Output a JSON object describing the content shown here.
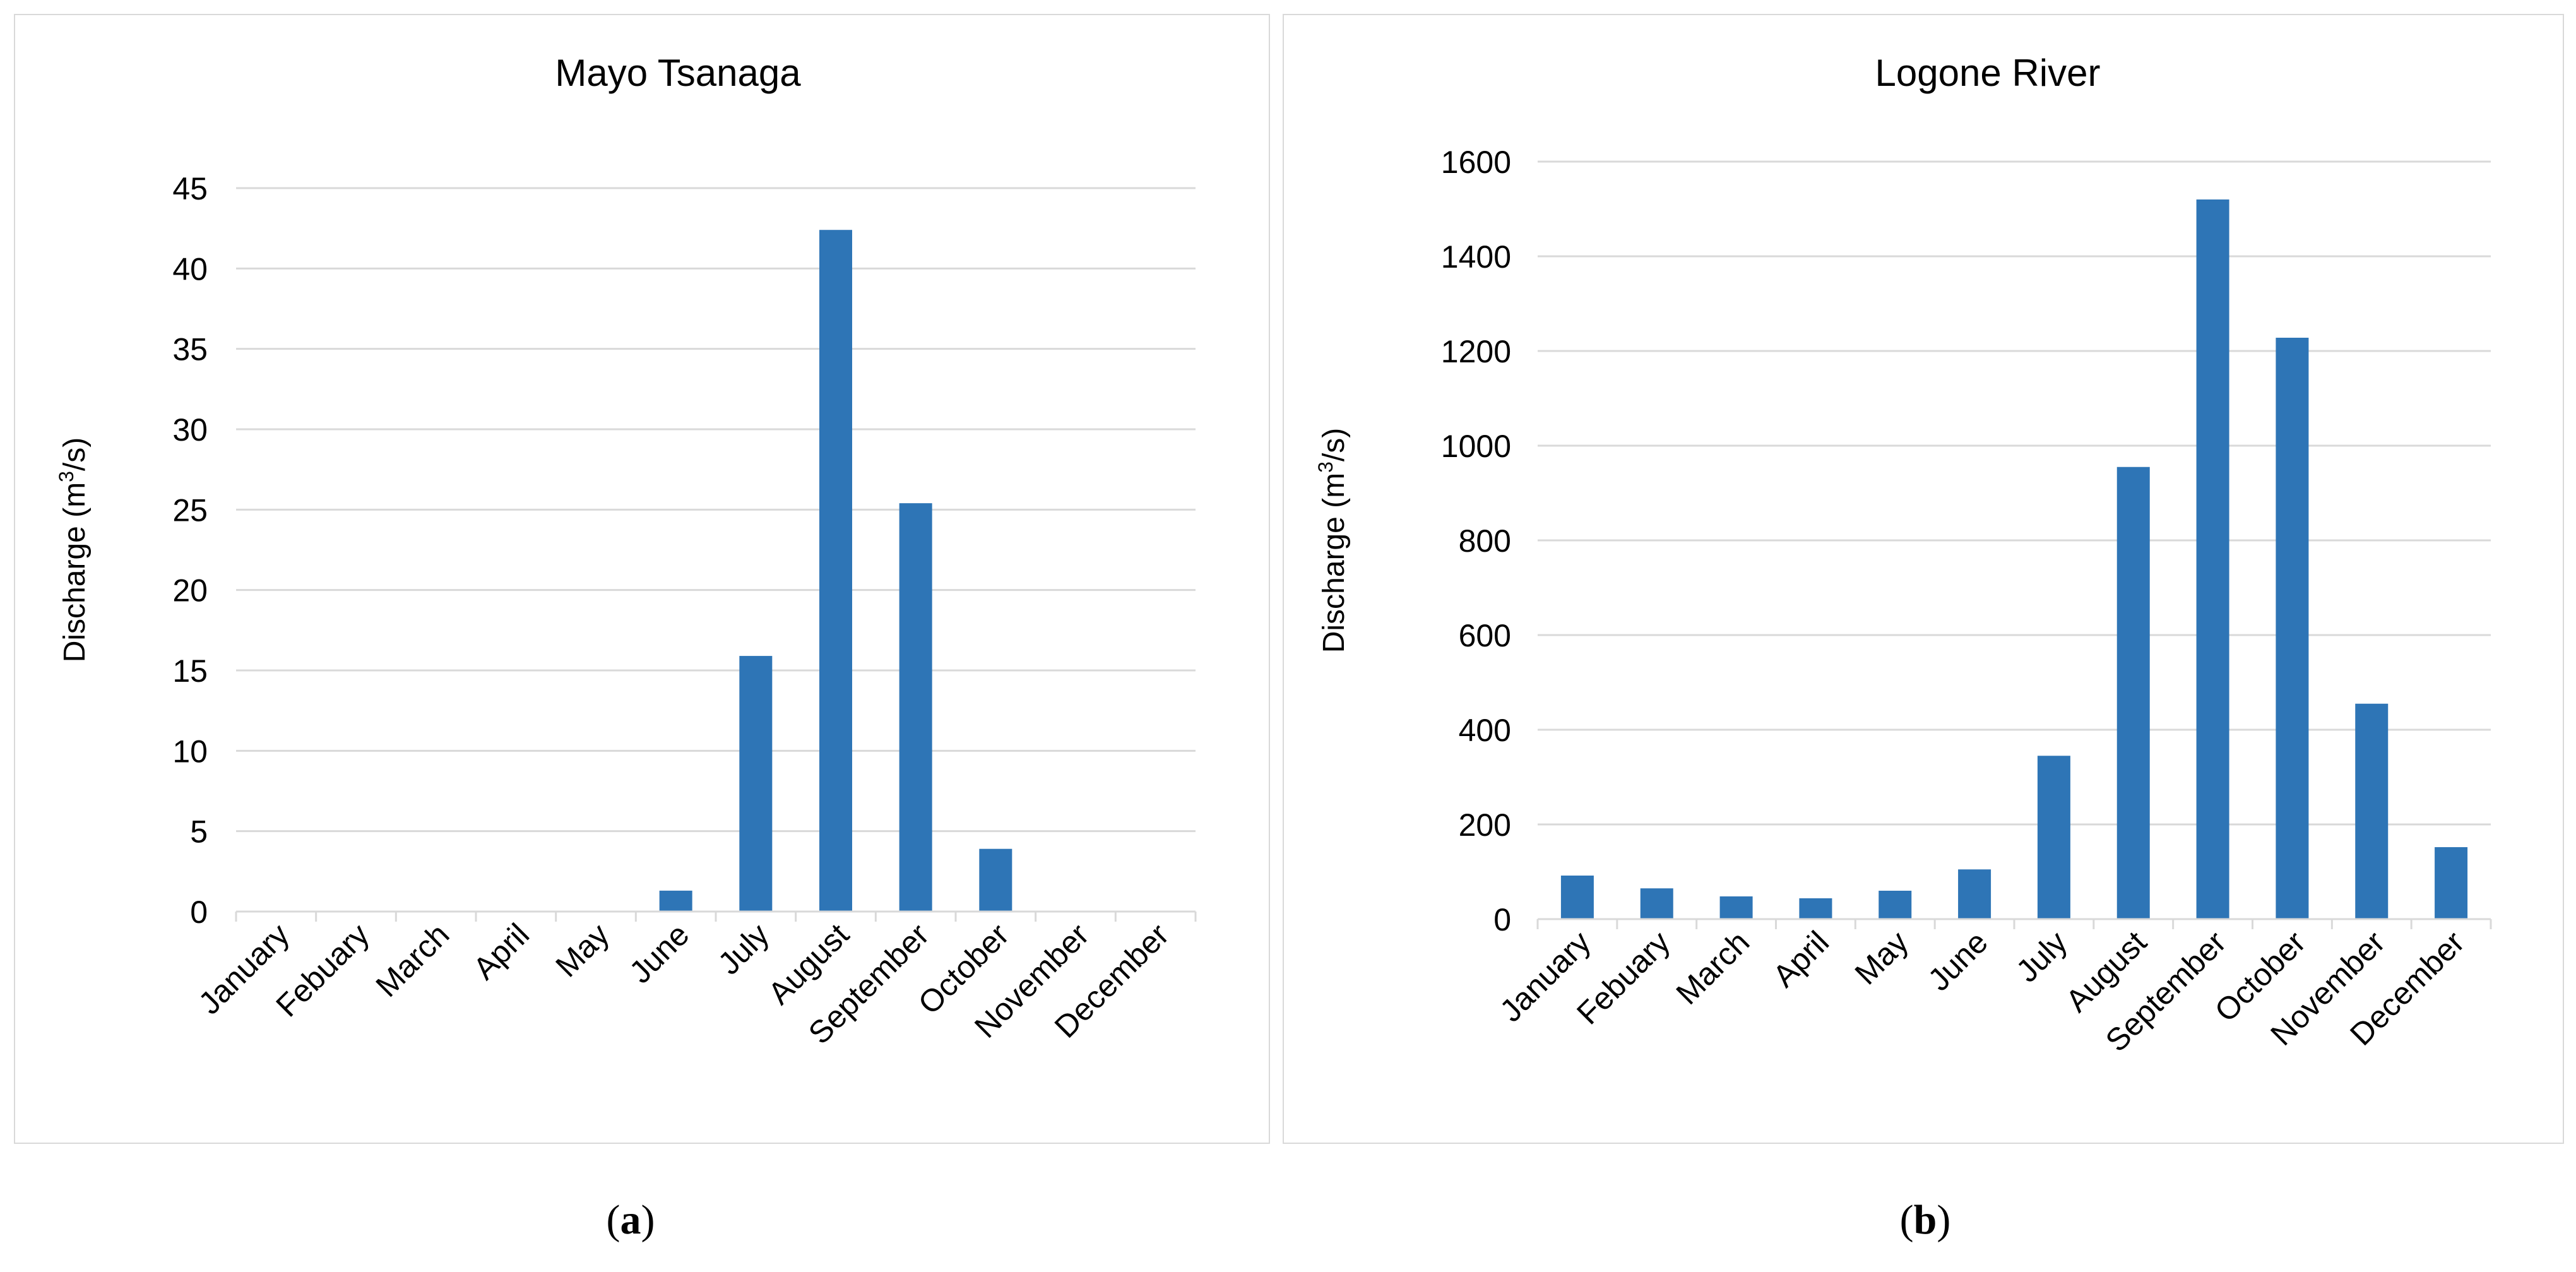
{
  "chart_data": [
    {
      "type": "bar",
      "title": "Mayo Tsanaga",
      "ylabel_prefix": "Discharge (m",
      "ylabel_sup": "3",
      "ylabel_suffix": "/s)",
      "xlabel": "",
      "categories": [
        "January",
        "Febuary",
        "March",
        "April",
        "May",
        "June",
        "July",
        "August",
        "September",
        "October",
        "November",
        "December"
      ],
      "values": [
        0,
        0,
        0,
        0,
        0,
        1.3,
        15.9,
        42.4,
        25.4,
        3.9,
        0,
        0
      ],
      "ylim": [
        0,
        45
      ],
      "yticks": [
        0,
        5,
        10,
        15,
        20,
        25,
        30,
        35,
        40,
        45
      ],
      "grid": true,
      "legend": "none",
      "bar_color": "#2e75b6",
      "grid_color": "#d9d9d9"
    },
    {
      "type": "bar",
      "title": "Logone River",
      "ylabel_prefix": "Discharge (m",
      "ylabel_sup": "3",
      "ylabel_suffix": "/s)",
      "xlabel": "",
      "categories": [
        "January",
        "Febuary",
        "March",
        "April",
        "May",
        "June",
        "July",
        "August",
        "September",
        "October",
        "November",
        "December"
      ],
      "values": [
        92,
        65,
        48,
        44,
        60,
        105,
        345,
        955,
        1520,
        1228,
        455,
        152
      ],
      "ylim": [
        0,
        1600
      ],
      "yticks": [
        0,
        200,
        400,
        600,
        800,
        1000,
        1200,
        1400,
        1600
      ],
      "grid": true,
      "legend": "none",
      "bar_color": "#2e75b6",
      "grid_color": "#d9d9d9"
    }
  ],
  "captions": [
    {
      "open": "(",
      "letter": "a",
      "close": ")"
    },
    {
      "open": "(",
      "letter": "b",
      "close": ")"
    }
  ]
}
